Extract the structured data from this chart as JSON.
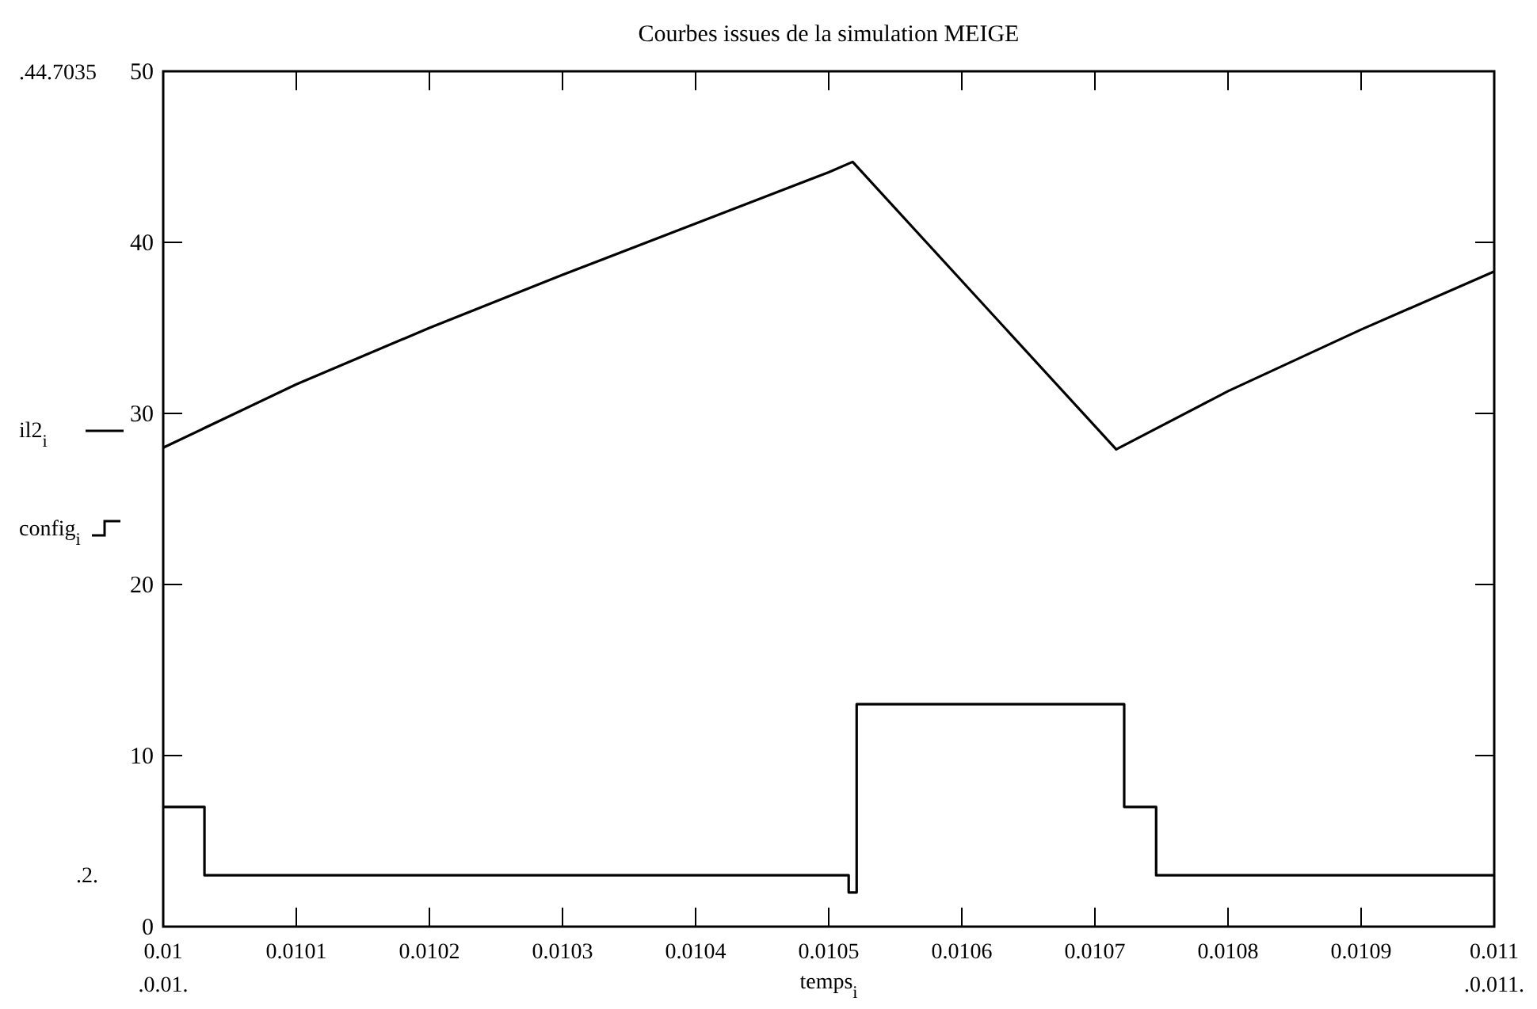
{
  "chart_data": {
    "type": "line",
    "title": "Courbes issues de la simulation MEIGE",
    "xlabel": "temps$_{i}$",
    "xlim": [
      0.01,
      0.011
    ],
    "xticks": [
      0.01,
      0.0101,
      0.0102,
      0.0103,
      0.0104,
      0.0105,
      0.0106,
      0.0107,
      0.0108,
      0.0109,
      0.011
    ],
    "ylim": [
      0,
      50
    ],
    "yticks": [
      0,
      10,
      20,
      30,
      40,
      50
    ],
    "grid": false,
    "legend": "left",
    "series": [
      {
        "name": "il2$_{i}$",
        "color": "#000000",
        "x": [
          0.01,
          0.0101,
          0.0102,
          0.0103,
          0.0104,
          0.0105,
          0.010518,
          0.010716,
          0.0108,
          0.0109,
          0.011
        ],
        "values": [
          28,
          31.7,
          35,
          38.1,
          41.1,
          44.1,
          44.7035,
          27.9,
          31.3,
          34.9,
          38.3
        ]
      },
      {
        "name": "config$_{i}$",
        "type": "step",
        "color": "#000000",
        "x": [
          0.01,
          0.010031,
          0.010515,
          0.010521,
          0.010722,
          0.010746,
          0.011
        ],
        "values": [
          7,
          3,
          2,
          13,
          7,
          3,
          3
        ]
      }
    ],
    "annotations": [
      ".44.7035",
      ".2.",
      ".0.01.",
      ".0.011."
    ]
  }
}
